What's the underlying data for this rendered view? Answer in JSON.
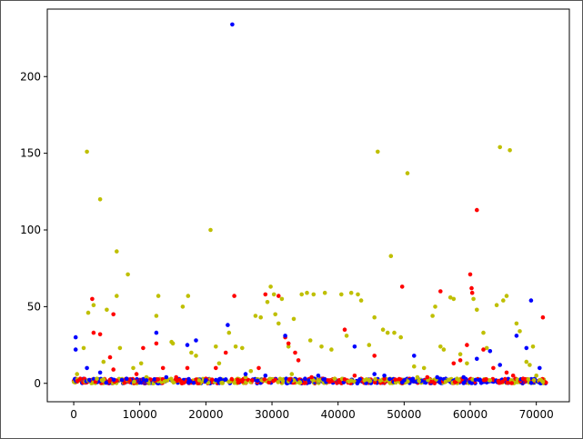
{
  "chart_data": {
    "type": "scatter",
    "title": "",
    "xlabel": "",
    "ylabel": "",
    "xlim": [
      -4000,
      75000
    ],
    "ylim": [
      -12,
      244
    ],
    "xticks": [
      0,
      10000,
      20000,
      30000,
      40000,
      50000,
      60000,
      70000
    ],
    "xtick_labels": [
      "0",
      "10000",
      "20000",
      "30000",
      "40000",
      "50000",
      "60000",
      "70000"
    ],
    "yticks": [
      0,
      50,
      100,
      150,
      200
    ],
    "ytick_labels": [
      "0",
      "50",
      "100",
      "150",
      "200"
    ],
    "grid": false,
    "legend": "none",
    "series": [
      {
        "name": "yellow",
        "color": "#bfbf00",
        "points": [
          [
            2000,
            151
          ],
          [
            3000,
            51
          ],
          [
            4000,
            120
          ],
          [
            5000,
            48
          ],
          [
            6500,
            86
          ],
          [
            6500,
            57
          ],
          [
            8200,
            71
          ],
          [
            1500,
            23
          ],
          [
            2200,
            46
          ],
          [
            4500,
            14
          ],
          [
            7000,
            23
          ],
          [
            9000,
            10
          ],
          [
            10200,
            13
          ],
          [
            12500,
            44
          ],
          [
            12800,
            57
          ],
          [
            14800,
            27
          ],
          [
            15000,
            26
          ],
          [
            16500,
            50
          ],
          [
            17300,
            57
          ],
          [
            17800,
            20
          ],
          [
            18500,
            18
          ],
          [
            20700,
            100
          ],
          [
            21500,
            24
          ],
          [
            22000,
            13
          ],
          [
            23500,
            33
          ],
          [
            24500,
            24
          ],
          [
            25500,
            23
          ],
          [
            26800,
            8
          ],
          [
            27500,
            44
          ],
          [
            28300,
            43
          ],
          [
            29300,
            53
          ],
          [
            29800,
            63
          ],
          [
            30300,
            58
          ],
          [
            30500,
            45
          ],
          [
            31000,
            39
          ],
          [
            31500,
            55
          ],
          [
            32500,
            24
          ],
          [
            33300,
            42
          ],
          [
            34500,
            58
          ],
          [
            35300,
            59
          ],
          [
            35800,
            28
          ],
          [
            36300,
            58
          ],
          [
            37500,
            24
          ],
          [
            38000,
            59
          ],
          [
            39000,
            22
          ],
          [
            40500,
            58
          ],
          [
            41300,
            31
          ],
          [
            42000,
            59
          ],
          [
            43000,
            58
          ],
          [
            43500,
            54
          ],
          [
            44700,
            25
          ],
          [
            45500,
            43
          ],
          [
            46000,
            151
          ],
          [
            46800,
            35
          ],
          [
            47500,
            33
          ],
          [
            48000,
            83
          ],
          [
            48500,
            33
          ],
          [
            49500,
            30
          ],
          [
            50500,
            137
          ],
          [
            51500,
            11
          ],
          [
            53000,
            10
          ],
          [
            54300,
            44
          ],
          [
            54700,
            50
          ],
          [
            55500,
            24
          ],
          [
            56000,
            22
          ],
          [
            57000,
            56
          ],
          [
            57500,
            55
          ],
          [
            58500,
            19
          ],
          [
            59500,
            13
          ],
          [
            60500,
            55
          ],
          [
            61000,
            48
          ],
          [
            62000,
            33
          ],
          [
            62500,
            23
          ],
          [
            64000,
            51
          ],
          [
            64500,
            154
          ],
          [
            65000,
            54
          ],
          [
            65500,
            57
          ],
          [
            66000,
            152
          ],
          [
            67000,
            39
          ],
          [
            67500,
            34
          ],
          [
            68500,
            14
          ],
          [
            69000,
            12
          ],
          [
            69500,
            24
          ],
          [
            70000,
            5
          ],
          [
            500,
            6
          ],
          [
            3500,
            3
          ],
          [
            11000,
            4
          ],
          [
            19000,
            2
          ],
          [
            26000,
            4
          ],
          [
            33000,
            6
          ],
          [
            39500,
            3
          ],
          [
            44000,
            2
          ],
          [
            52000,
            4
          ],
          [
            58000,
            3
          ],
          [
            63000,
            2
          ],
          [
            71000,
            1
          ]
        ]
      },
      {
        "name": "red",
        "color": "#ff0000",
        "points": [
          [
            2800,
            55
          ],
          [
            3000,
            33
          ],
          [
            4000,
            32
          ],
          [
            5500,
            17
          ],
          [
            6000,
            9
          ],
          [
            6000,
            45
          ],
          [
            9500,
            6
          ],
          [
            10500,
            23
          ],
          [
            12500,
            26
          ],
          [
            13500,
            10
          ],
          [
            17200,
            10
          ],
          [
            21500,
            10
          ],
          [
            23000,
            20
          ],
          [
            24300,
            57
          ],
          [
            28000,
            10
          ],
          [
            29000,
            58
          ],
          [
            31000,
            57
          ],
          [
            32000,
            30
          ],
          [
            32500,
            26
          ],
          [
            33500,
            20
          ],
          [
            34000,
            15
          ],
          [
            41000,
            35
          ],
          [
            42500,
            5
          ],
          [
            45500,
            18
          ],
          [
            49700,
            63
          ],
          [
            55500,
            60
          ],
          [
            57500,
            13
          ],
          [
            58500,
            15
          ],
          [
            59500,
            25
          ],
          [
            60000,
            71
          ],
          [
            60200,
            62
          ],
          [
            60300,
            59
          ],
          [
            61000,
            113
          ],
          [
            62000,
            22
          ],
          [
            63500,
            10
          ],
          [
            65500,
            7
          ],
          [
            66500,
            5
          ],
          [
            71000,
            43
          ],
          [
            1000,
            3
          ],
          [
            8500,
            2
          ],
          [
            15500,
            4
          ],
          [
            20000,
            3
          ],
          [
            27000,
            2
          ],
          [
            36000,
            4
          ],
          [
            38500,
            2
          ],
          [
            47000,
            3
          ],
          [
            53500,
            4
          ],
          [
            68000,
            3
          ]
        ]
      },
      {
        "name": "blue",
        "color": "#0000ff",
        "points": [
          [
            24000,
            234
          ],
          [
            300,
            30
          ],
          [
            300,
            22
          ],
          [
            2000,
            10
          ],
          [
            4000,
            7
          ],
          [
            12500,
            33
          ],
          [
            17200,
            25
          ],
          [
            18500,
            28
          ],
          [
            23300,
            38
          ],
          [
            32000,
            31
          ],
          [
            42500,
            24
          ],
          [
            51500,
            18
          ],
          [
            61000,
            16
          ],
          [
            69200,
            54
          ],
          [
            68500,
            23
          ],
          [
            67000,
            31
          ],
          [
            63000,
            21
          ],
          [
            70500,
            10
          ],
          [
            14000,
            4
          ],
          [
            37000,
            5
          ],
          [
            45500,
            6
          ],
          [
            29000,
            5
          ],
          [
            8000,
            3
          ],
          [
            55000,
            4
          ],
          [
            64500,
            12
          ],
          [
            26000,
            6
          ],
          [
            47000,
            5
          ],
          [
            59000,
            4
          ],
          [
            35000,
            3
          ],
          [
            20000,
            2
          ],
          [
            11000,
            2
          ],
          [
            50000,
            2
          ]
        ]
      }
    ],
    "baseline_band": {
      "x_range": [
        0,
        71500
      ],
      "colors": [
        "#0000ff",
        "#ff0000",
        "#bfbf00"
      ],
      "y_range": [
        0,
        3
      ]
    }
  }
}
